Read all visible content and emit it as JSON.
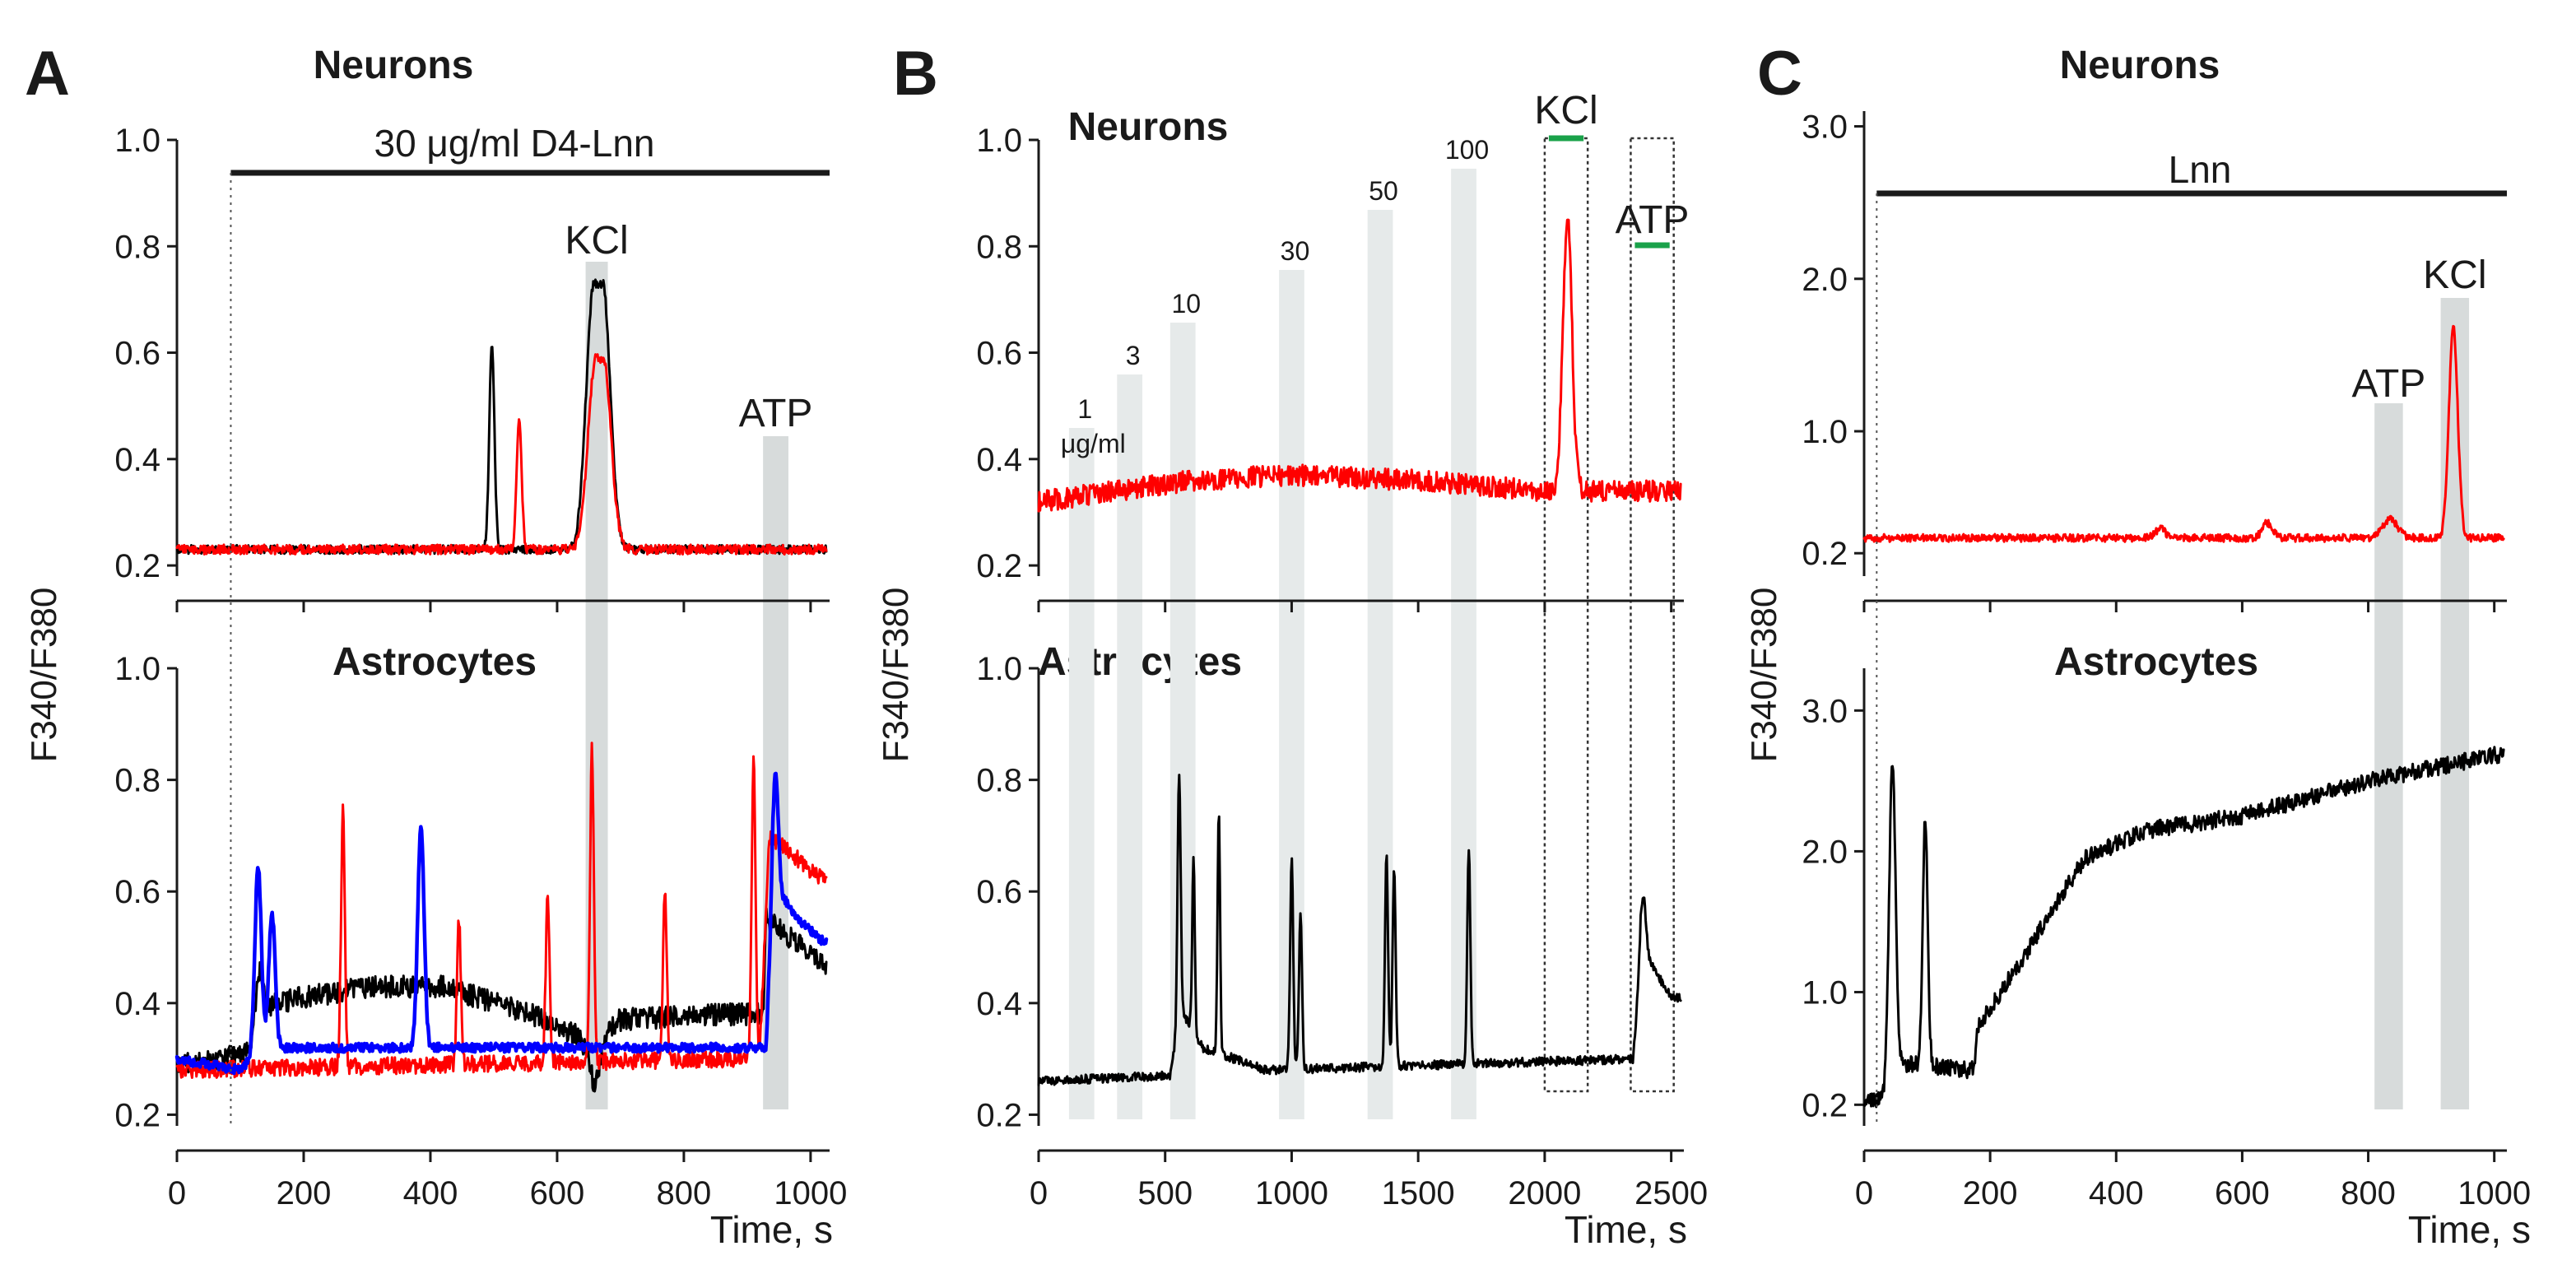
{
  "figure": {
    "ylabel": "F340/F380",
    "xlabel": "Time, s"
  },
  "chart_data": [
    {
      "panel": "A",
      "type": "line",
      "xlim": [
        0,
        1030
      ],
      "x_ticks": [
        0,
        200,
        400,
        600,
        800,
        1000
      ],
      "xlabel": "Time, s",
      "treatment_bar": {
        "label": "30 μg/ml D4-Lnn",
        "start": 85,
        "end": 1030
      },
      "stimuli": [
        {
          "label": "KCl",
          "start": 645,
          "end": 680
        },
        {
          "label": "ATP",
          "start": 925,
          "end": 965
        }
      ],
      "subplots": [
        {
          "title": "Neurons",
          "ylabel": "F340/F380",
          "ylim": [
            0.18,
            1.0
          ],
          "y_ticks": [
            0.2,
            0.4,
            0.6,
            0.8,
            1.0
          ],
          "series": [
            {
              "color": "#000000",
              "baseline": 0.23,
              "noise": 0.008,
              "events": [
                {
                  "t": 497,
                  "a": 0.39,
                  "w": 4
                },
                {
                  "t": 665,
                  "a": 0.5,
                  "w": 12,
                  "plateau": 14
                }
              ]
            },
            {
              "color": "#ff0000",
              "baseline": 0.23,
              "noise": 0.009,
              "events": [
                {
                  "t": 540,
                  "a": 0.24,
                  "w": 4
                },
                {
                  "t": 667,
                  "a": 0.36,
                  "w": 12,
                  "plateau": 12
                }
              ]
            }
          ]
        },
        {
          "title": "Astrocytes",
          "ylabel": "F340/F380",
          "ylim": [
            0.18,
            1.0
          ],
          "y_ticks": [
            0.2,
            0.4,
            0.6,
            0.8,
            1.0
          ],
          "series": [
            {
              "color": "#000000",
              "baseline": 0.3,
              "noise": 0.02,
              "drift": [
                [
                  0,
                  0.29
                ],
                [
                  110,
                  0.31
                ],
                [
                  150,
                  0.4
                ],
                [
                  300,
                  0.43
                ],
                [
                  420,
                  0.43
                ],
                [
                  560,
                  0.38
                ],
                [
                  640,
                  0.34
                ],
                [
                  700,
                  0.37
                ],
                [
                  850,
                  0.38
                ],
                [
                  925,
                  0.38
                ],
                [
                  930,
                  0.55
                ],
                [
                  1020,
                  0.47
                ]
              ],
              "events": [
                {
                  "t": 130,
                  "a": 0.1,
                  "w": 6
                },
                {
                  "t": 660,
                  "a": -0.09,
                  "w": 10
                }
              ]
            },
            {
              "color": "#ff0000",
              "baseline": 0.29,
              "noise": 0.015,
              "drift": [
                [
                  0,
                  0.28
                ],
                [
                  900,
                  0.3
                ],
                [
                  920,
                  0.32
                ],
                [
                  935,
                  0.7
                ],
                [
                  1020,
                  0.62
                ]
              ],
              "events": [
                {
                  "t": 262,
                  "a": 0.46,
                  "w": 3
                },
                {
                  "t": 445,
                  "a": 0.26,
                  "w": 3
                },
                {
                  "t": 585,
                  "a": 0.29,
                  "w": 3
                },
                {
                  "t": 655,
                  "a": 0.56,
                  "w": 3
                },
                {
                  "t": 770,
                  "a": 0.3,
                  "w": 3
                },
                {
                  "t": 910,
                  "a": 0.52,
                  "w": 3
                }
              ]
            },
            {
              "color": "#0000ff",
              "baseline": 0.31,
              "noise": 0.008,
              "drift": [
                [
                  0,
                  0.3
                ],
                [
                  100,
                  0.28
                ],
                [
                  130,
                  0.32
                ],
                [
                  930,
                  0.32
                ],
                [
                  940,
                  0.62
                ],
                [
                  980,
                  0.55
                ],
                [
                  1020,
                  0.51
                ]
              ],
              "events": [
                {
                  "t": 128,
                  "a": 0.33,
                  "w": 5
                },
                {
                  "t": 150,
                  "a": 0.24,
                  "w": 5
                },
                {
                  "t": 385,
                  "a": 0.4,
                  "w": 5
                },
                {
                  "t": 945,
                  "a": 0.2,
                  "w": 4
                }
              ]
            }
          ]
        }
      ]
    },
    {
      "panel": "B",
      "type": "line",
      "xlim": [
        0,
        2550
      ],
      "x_ticks": [
        0,
        500,
        1000,
        1500,
        2000,
        2500
      ],
      "xlabel": "Time, s",
      "doses": [
        {
          "label": "1",
          "label2": "μg/ml",
          "start": 120,
          "end": 220
        },
        {
          "label": "3",
          "start": 310,
          "end": 410
        },
        {
          "label": "10",
          "start": 520,
          "end": 620
        },
        {
          "label": "30",
          "start": 950,
          "end": 1050
        },
        {
          "label": "50",
          "start": 1300,
          "end": 1400
        },
        {
          "label": "100",
          "start": 1630,
          "end": 1730
        }
      ],
      "stimuli": [
        {
          "label": "KCl",
          "start": 2000,
          "end": 2170
        },
        {
          "label": "ATP",
          "start": 2340,
          "end": 2510
        }
      ],
      "subplots": [
        {
          "title": "Neurons",
          "ylabel": "F340/F380",
          "ylim": [
            0.18,
            1.0
          ],
          "y_ticks": [
            0.2,
            0.4,
            0.6,
            0.8,
            1.0
          ],
          "series": [
            {
              "color": "#ff0000",
              "baseline": 0.35,
              "noise": 0.02,
              "drift": [
                [
                  0,
                  0.32
                ],
                [
                  600,
                  0.36
                ],
                [
                  1000,
                  0.37
                ],
                [
                  1500,
                  0.36
                ],
                [
                  2000,
                  0.34
                ],
                [
                  2500,
                  0.34
                ]
              ],
              "events": [
                {
                  "t": 2090,
                  "a": 0.51,
                  "w": 18
                }
              ]
            }
          ]
        },
        {
          "title": "Astrocytes",
          "ylabel": "F340/F380",
          "ylim": [
            0.18,
            1.0
          ],
          "y_ticks": [
            0.2,
            0.4,
            0.6,
            0.8,
            1.0
          ],
          "series": [
            {
              "color": "#000000",
              "baseline": 0.27,
              "noise": 0.008,
              "drift": [
                [
                  0,
                  0.26
                ],
                [
                  520,
                  0.27
                ],
                [
                  560,
                  0.39
                ],
                [
                  650,
                  0.32
                ],
                [
                  900,
                  0.28
                ],
                [
                  2350,
                  0.3
                ],
                [
                  2380,
                  0.5
                ],
                [
                  2500,
                  0.41
                ]
              ],
              "events": [
                {
                  "t": 555,
                  "a": 0.44,
                  "w": 6
                },
                {
                  "t": 612,
                  "a": 0.32,
                  "w": 5
                },
                {
                  "t": 712,
                  "a": 0.43,
                  "w": 5
                },
                {
                  "t": 1000,
                  "a": 0.38,
                  "w": 6
                },
                {
                  "t": 1035,
                  "a": 0.28,
                  "w": 6
                },
                {
                  "t": 1375,
                  "a": 0.38,
                  "w": 6
                },
                {
                  "t": 1405,
                  "a": 0.35,
                  "w": 6
                },
                {
                  "t": 1700,
                  "a": 0.39,
                  "w": 6
                },
                {
                  "t": 2390,
                  "a": 0.1,
                  "w": 10
                }
              ]
            }
          ]
        }
      ]
    },
    {
      "panel": "C",
      "type": "line",
      "xlim": [
        0,
        1020
      ],
      "x_ticks": [
        0,
        200,
        400,
        600,
        800,
        1000
      ],
      "xlabel": "Time, s",
      "treatment_bar": {
        "label": "Lnn",
        "start": 20,
        "end": 1020
      },
      "stimuli": [
        {
          "label": "ATP",
          "start": 810,
          "end": 855
        },
        {
          "label": "KCl",
          "start": 915,
          "end": 960
        }
      ],
      "subplots": [
        {
          "title": "Neurons",
          "ylabel": "F340/F380",
          "ylim": [
            0.05,
            3.1
          ],
          "y_ticks": [
            0.2,
            1.0,
            2.0,
            3.0
          ],
          "series": [
            {
              "color": "#ff0000",
              "baseline": 0.3,
              "noise": 0.025,
              "events": [
                {
                  "t": 470,
                  "a": 0.06,
                  "w": 8
                },
                {
                  "t": 640,
                  "a": 0.1,
                  "w": 8
                },
                {
                  "t": 835,
                  "a": 0.12,
                  "w": 12
                },
                {
                  "t": 935,
                  "a": 1.38,
                  "w": 7
                }
              ]
            }
          ]
        },
        {
          "title": "Astrocytes",
          "ylabel": "F340/F380",
          "ylim": [
            0.05,
            3.3
          ],
          "y_ticks": [
            0.2,
            1.0,
            2.0,
            3.0
          ],
          "series": [
            {
              "color": "#000000",
              "baseline": 0.4,
              "noise": 0.06,
              "drift": [
                [
                  0,
                  0.2
                ],
                [
                  30,
                  0.25
                ],
                [
                  40,
                  0.5
                ],
                [
                  160,
                  0.45
                ],
                [
                  175,
                  0.45
                ],
                [
                  180,
                  0.75
                ],
                [
                  260,
                  1.3
                ],
                [
                  350,
                  1.95
                ],
                [
                  450,
                  2.15
                ],
                [
                  600,
                  2.25
                ],
                [
                  800,
                  2.5
                ],
                [
                  1020,
                  2.7
                ]
              ],
              "events": [
                {
                  "t": 45,
                  "a": 2.1,
                  "w": 5
                },
                {
                  "t": 97,
                  "a": 1.75,
                  "w": 4
                }
              ]
            }
          ]
        }
      ]
    }
  ]
}
